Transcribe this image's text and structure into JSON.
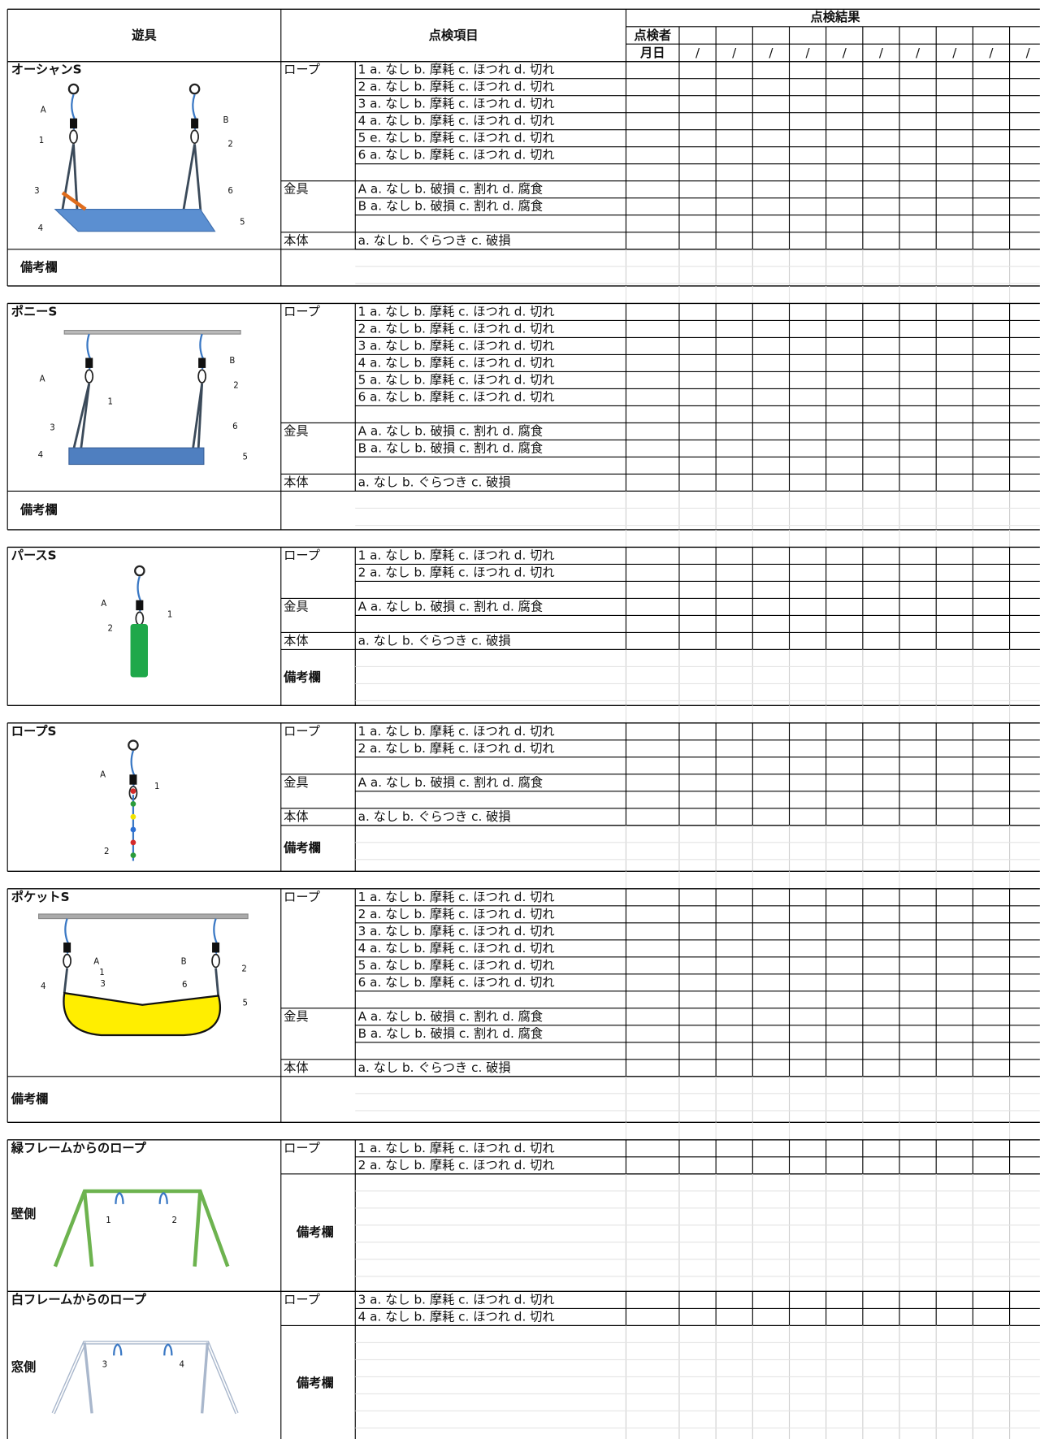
{
  "header": {
    "equipment": "遊具",
    "items": "点検項目",
    "results": "点検結果",
    "inspector": "点検者",
    "date": "月日",
    "date_marks": [
      "/",
      "/",
      "/",
      "/",
      "/",
      "/",
      "/",
      "/",
      "/",
      "/"
    ]
  },
  "sections": [
    {
      "name": "オーシャンS",
      "remarks": "備考欄",
      "figure_labels": [
        "A",
        "1",
        "3",
        "4",
        "B",
        "2",
        "6",
        "5"
      ],
      "rows": [
        {
          "group": "ロープ",
          "text": "1 a. なし b. 摩耗 c. ほつれ d. 切れ"
        },
        {
          "text": "2 a. なし b. 摩耗 c. ほつれ d. 切れ"
        },
        {
          "text": "3 a. なし b. 摩耗 c. ほつれ d. 切れ"
        },
        {
          "text": "4 a. なし b. 摩耗 c. ほつれ d. 切れ"
        },
        {
          "text": "5 e. なし b. 摩耗 c. ほつれ d. 切れ"
        },
        {
          "text": "6 a. なし b. 摩耗 c. ほつれ d. 切れ"
        },
        null,
        {
          "group": "金具",
          "text": "A a. なし b. 破損 c. 割れ d. 腐食"
        },
        {
          "text": "B a. なし b. 破損 c. 割れ d. 腐食"
        },
        null,
        {
          "group": "本体",
          "text": "a. なし b. ぐらつき c. 破損"
        }
      ]
    },
    {
      "name": "ポニーS",
      "remarks": "備考欄",
      "figure_labels": [
        "A",
        "1",
        "3",
        "4",
        "B",
        "2",
        "6",
        "5"
      ],
      "rows": [
        {
          "group": "ロープ",
          "text": "1 a. なし b. 摩耗 c. ほつれ d. 切れ"
        },
        {
          "text": "2 a. なし b. 摩耗 c. ほつれ d. 切れ"
        },
        {
          "text": "3 a. なし b. 摩耗 c. ほつれ d. 切れ"
        },
        {
          "text": "4 a. なし b. 摩耗 c. ほつれ d. 切れ"
        },
        {
          "text": "5 a. なし b. 摩耗 c. ほつれ d. 切れ"
        },
        {
          "text": "6 a. なし b. 摩耗 c. ほつれ d. 切れ"
        },
        null,
        {
          "group": "金具",
          "text": "A a. なし b. 破損 c. 割れ d. 腐食"
        },
        {
          "text": "B a. なし b. 破損 c. 割れ d. 腐食"
        },
        null,
        {
          "group": "本体",
          "text": "a. なし b. ぐらつき c. 破損"
        }
      ]
    },
    {
      "name": "パースS",
      "remarks": "備考欄",
      "figure_labels": [
        "A",
        "1",
        "2"
      ],
      "rows": [
        {
          "group": "ロープ",
          "text": "1 a. なし b. 摩耗 c. ほつれ d. 切れ"
        },
        {
          "text": "2 a. なし b. 摩耗 c. ほつれ d. 切れ"
        },
        null,
        {
          "group": "金具",
          "text": "A a. なし b. 破損 c. 割れ d. 腐食"
        },
        null,
        {
          "group": "本体",
          "text": "a. なし b. ぐらつき c. 破損"
        }
      ]
    },
    {
      "name": "ロープS",
      "remarks": "備考欄",
      "figure_labels": [
        "A",
        "1",
        "2"
      ],
      "rows": [
        {
          "group": "ロープ",
          "text": "1 a. なし b. 摩耗 c. ほつれ d. 切れ"
        },
        {
          "text": "2 a. なし b. 摩耗 c. ほつれ d. 切れ"
        },
        null,
        {
          "group": "金具",
          "text": "A a. なし b. 破損 c. 割れ d. 腐食"
        },
        null,
        {
          "group": "本体",
          "text": "a. なし b. ぐらつき c. 破損"
        }
      ]
    },
    {
      "name": "ポケットS",
      "remarks": "備考欄",
      "figure_labels": [
        "A",
        "1",
        "3",
        "4",
        "B",
        "2",
        "6",
        "5"
      ],
      "rows": [
        {
          "group": "ロープ",
          "text": "1 a. なし b. 摩耗 c. ほつれ d. 切れ"
        },
        {
          "text": "2 a. なし b. 摩耗 c. ほつれ d. 切れ"
        },
        {
          "text": "3 a. なし b. 摩耗 c. ほつれ d. 切れ"
        },
        {
          "text": "4 a. なし b. 摩耗 c. ほつれ d. 切れ"
        },
        {
          "text": "5 a. なし b. 摩耗 c. ほつれ d. 切れ"
        },
        {
          "text": "6 a. なし b. 摩耗 c. ほつれ d. 切れ"
        },
        null,
        {
          "group": "金具",
          "text": "A a. なし b. 破損 c. 割れ d. 腐食"
        },
        {
          "text": "B a. なし b. 破損 c. 割れ d. 腐食"
        },
        null,
        {
          "group": "本体",
          "text": "a. なし b. ぐらつき c. 破損"
        }
      ]
    },
    {
      "name": "緑フレームからのロープ",
      "remarks": "備考欄",
      "side": "壁側",
      "figure_labels": [
        "1",
        "2"
      ],
      "rows": [
        {
          "group": "ロープ",
          "text": "1 a. なし b. 摩耗 c. ほつれ d. 切れ"
        },
        {
          "text": "2 a. なし b. 摩耗 c. ほつれ d. 切れ"
        }
      ]
    },
    {
      "name": "白フレームからのロープ",
      "remarks": "備考欄",
      "side": "窓側",
      "figure_labels": [
        "3",
        "4"
      ],
      "rows": [
        {
          "group": "ロープ",
          "text": "3 a. なし b. 摩耗 c. ほつれ d. 切れ"
        },
        {
          "text": "4 a. なし b. 摩耗 c. ほつれ d. 切れ"
        }
      ]
    }
  ]
}
